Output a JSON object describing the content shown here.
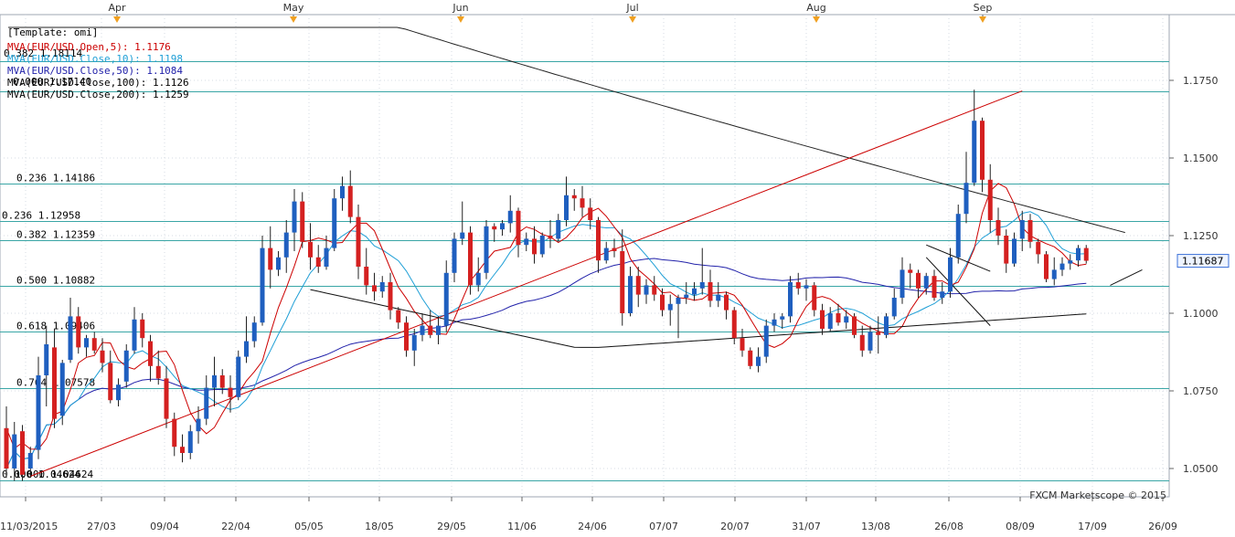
{
  "chart_data": {
    "type": "candlestick",
    "symbol": "EUR/USD",
    "timeframe": "daily",
    "template_label": "[Template: omi]",
    "legend": [
      {
        "text": "MVA(EUR/USD.Open,5): 1.1176",
        "color": "#cc0000"
      },
      {
        "text": "MVA(EUR/USD.Close,10): 1.1198",
        "color": "#1f9fd6"
      },
      {
        "text": "MVA(EUR/USD.Close,50): 1.1084",
        "color": "#2222aa"
      },
      {
        "text": "MVA(EUR/USD.Close,100): 1.1126",
        "color": "#000000"
      },
      {
        "text": "MVA(EUR/USD.Close,200): 1.1259",
        "color": "#000000"
      }
    ],
    "legend_overlap_texts": [
      "0.382 1.18114",
      "0.000 1.17140"
    ],
    "watermark": "FXCM Marketscope © 2015",
    "current_price": "1.11687",
    "y_ticks": [
      "1.0500",
      "1.0750",
      "1.1000",
      "1.1250",
      "1.1500",
      "1.1750"
    ],
    "y_tick_values": [
      1.05,
      1.075,
      1.1,
      1.125,
      1.15,
      1.175
    ],
    "y_range": [
      1.04,
      1.19
    ],
    "x_ticks": [
      "11/03/2015",
      "27/03",
      "09/04",
      "22/04",
      "05/05",
      "18/05",
      "29/05",
      "11/06",
      "24/06",
      "07/07",
      "20/07",
      "31/07",
      "13/08",
      "26/08",
      "08/09",
      "17/09",
      "26/09"
    ],
    "month_labels": [
      "Apr",
      "May",
      "Jun",
      "Jul",
      "Aug",
      "Sep"
    ],
    "fib_levels": [
      {
        "label": "0.382 1.18114",
        "value": 1.18114
      },
      {
        "label": "0.000 1.17140",
        "value": 1.1714
      },
      {
        "label": "0.236 1.14186",
        "value": 1.14186
      },
      {
        "label": "0.236 1.12958",
        "value": 1.12958
      },
      {
        "label": "0.382 1.12359",
        "value": 1.12359
      },
      {
        "label": "0.500 1.10882",
        "value": 1.10882
      },
      {
        "label": "0.618 1.09406",
        "value": 1.09406
      },
      {
        "label": "0.764 1.07578",
        "value": 1.07578
      },
      {
        "label": "0.000 1.04624",
        "value": 1.04624
      },
      {
        "label": "1.000 1.04624",
        "value": 1.04624
      }
    ],
    "candles": [
      {
        "o": 1.063,
        "h": 1.07,
        "l": 1.047,
        "c": 1.05
      },
      {
        "o": 1.05,
        "h": 1.065,
        "l": 1.046,
        "c": 1.061
      },
      {
        "o": 1.062,
        "h": 1.064,
        "l": 1.046,
        "c": 1.048
      },
      {
        "o": 1.05,
        "h": 1.057,
        "l": 1.047,
        "c": 1.055
      },
      {
        "o": 1.056,
        "h": 1.086,
        "l": 1.053,
        "c": 1.08
      },
      {
        "o": 1.08,
        "h": 1.096,
        "l": 1.07,
        "c": 1.09
      },
      {
        "o": 1.089,
        "h": 1.095,
        "l": 1.063,
        "c": 1.066
      },
      {
        "o": 1.067,
        "h": 1.085,
        "l": 1.064,
        "c": 1.084
      },
      {
        "o": 1.085,
        "h": 1.105,
        "l": 1.084,
        "c": 1.099
      },
      {
        "o": 1.099,
        "h": 1.102,
        "l": 1.087,
        "c": 1.089
      },
      {
        "o": 1.089,
        "h": 1.093,
        "l": 1.086,
        "c": 1.092
      },
      {
        "o": 1.092,
        "h": 1.094,
        "l": 1.087,
        "c": 1.088
      },
      {
        "o": 1.088,
        "h": 1.092,
        "l": 1.081,
        "c": 1.084
      },
      {
        "o": 1.084,
        "h": 1.088,
        "l": 1.071,
        "c": 1.072
      },
      {
        "o": 1.072,
        "h": 1.079,
        "l": 1.07,
        "c": 1.077
      },
      {
        "o": 1.078,
        "h": 1.09,
        "l": 1.076,
        "c": 1.088
      },
      {
        "o": 1.088,
        "h": 1.102,
        "l": 1.087,
        "c": 1.098
      },
      {
        "o": 1.098,
        "h": 1.1,
        "l": 1.089,
        "c": 1.092
      },
      {
        "o": 1.091,
        "h": 1.093,
        "l": 1.078,
        "c": 1.083
      },
      {
        "o": 1.083,
        "h": 1.088,
        "l": 1.077,
        "c": 1.079
      },
      {
        "o": 1.079,
        "h": 1.083,
        "l": 1.063,
        "c": 1.066
      },
      {
        "o": 1.066,
        "h": 1.068,
        "l": 1.054,
        "c": 1.057
      },
      {
        "o": 1.057,
        "h": 1.061,
        "l": 1.052,
        "c": 1.055
      },
      {
        "o": 1.055,
        "h": 1.064,
        "l": 1.053,
        "c": 1.062
      },
      {
        "o": 1.062,
        "h": 1.07,
        "l": 1.058,
        "c": 1.066
      },
      {
        "o": 1.066,
        "h": 1.08,
        "l": 1.064,
        "c": 1.076
      },
      {
        "o": 1.076,
        "h": 1.086,
        "l": 1.07,
        "c": 1.08
      },
      {
        "o": 1.08,
        "h": 1.082,
        "l": 1.074,
        "c": 1.076
      },
      {
        "o": 1.076,
        "h": 1.08,
        "l": 1.068,
        "c": 1.073
      },
      {
        "o": 1.073,
        "h": 1.088,
        "l": 1.072,
        "c": 1.086
      },
      {
        "o": 1.086,
        "h": 1.099,
        "l": 1.084,
        "c": 1.091
      },
      {
        "o": 1.091,
        "h": 1.099,
        "l": 1.089,
        "c": 1.097
      },
      {
        "o": 1.097,
        "h": 1.125,
        "l": 1.096,
        "c": 1.121
      },
      {
        "o": 1.121,
        "h": 1.128,
        "l": 1.108,
        "c": 1.114
      },
      {
        "o": 1.114,
        "h": 1.12,
        "l": 1.112,
        "c": 1.118
      },
      {
        "o": 1.118,
        "h": 1.13,
        "l": 1.113,
        "c": 1.126
      },
      {
        "o": 1.126,
        "h": 1.14,
        "l": 1.12,
        "c": 1.136
      },
      {
        "o": 1.136,
        "h": 1.139,
        "l": 1.121,
        "c": 1.123
      },
      {
        "o": 1.123,
        "h": 1.129,
        "l": 1.114,
        "c": 1.118
      },
      {
        "o": 1.118,
        "h": 1.122,
        "l": 1.113,
        "c": 1.115
      },
      {
        "o": 1.115,
        "h": 1.125,
        "l": 1.114,
        "c": 1.121
      },
      {
        "o": 1.121,
        "h": 1.14,
        "l": 1.12,
        "c": 1.137
      },
      {
        "o": 1.137,
        "h": 1.144,
        "l": 1.133,
        "c": 1.141
      },
      {
        "o": 1.141,
        "h": 1.146,
        "l": 1.129,
        "c": 1.131
      },
      {
        "o": 1.131,
        "h": 1.135,
        "l": 1.111,
        "c": 1.115
      },
      {
        "o": 1.115,
        "h": 1.121,
        "l": 1.106,
        "c": 1.109
      },
      {
        "o": 1.109,
        "h": 1.113,
        "l": 1.104,
        "c": 1.107
      },
      {
        "o": 1.107,
        "h": 1.112,
        "l": 1.105,
        "c": 1.11
      },
      {
        "o": 1.11,
        "h": 1.113,
        "l": 1.098,
        "c": 1.101
      },
      {
        "o": 1.101,
        "h": 1.102,
        "l": 1.095,
        "c": 1.097
      },
      {
        "o": 1.097,
        "h": 1.099,
        "l": 1.086,
        "c": 1.088
      },
      {
        "o": 1.088,
        "h": 1.095,
        "l": 1.083,
        "c": 1.093
      },
      {
        "o": 1.093,
        "h": 1.1,
        "l": 1.091,
        "c": 1.096
      },
      {
        "o": 1.096,
        "h": 1.101,
        "l": 1.092,
        "c": 1.093
      },
      {
        "o": 1.093,
        "h": 1.099,
        "l": 1.09,
        "c": 1.096
      },
      {
        "o": 1.096,
        "h": 1.117,
        "l": 1.094,
        "c": 1.113
      },
      {
        "o": 1.113,
        "h": 1.126,
        "l": 1.11,
        "c": 1.124
      },
      {
        "o": 1.124,
        "h": 1.136,
        "l": 1.122,
        "c": 1.126
      },
      {
        "o": 1.126,
        "h": 1.128,
        "l": 1.106,
        "c": 1.109
      },
      {
        "o": 1.109,
        "h": 1.118,
        "l": 1.107,
        "c": 1.113
      },
      {
        "o": 1.113,
        "h": 1.13,
        "l": 1.111,
        "c": 1.128
      },
      {
        "o": 1.128,
        "h": 1.129,
        "l": 1.123,
        "c": 1.127
      },
      {
        "o": 1.127,
        "h": 1.13,
        "l": 1.125,
        "c": 1.129
      },
      {
        "o": 1.129,
        "h": 1.138,
        "l": 1.126,
        "c": 1.133
      },
      {
        "o": 1.133,
        "h": 1.134,
        "l": 1.118,
        "c": 1.122
      },
      {
        "o": 1.122,
        "h": 1.126,
        "l": 1.12,
        "c": 1.124
      },
      {
        "o": 1.124,
        "h": 1.128,
        "l": 1.116,
        "c": 1.119
      },
      {
        "o": 1.119,
        "h": 1.126,
        "l": 1.118,
        "c": 1.125
      },
      {
        "o": 1.125,
        "h": 1.13,
        "l": 1.121,
        "c": 1.124
      },
      {
        "o": 1.124,
        "h": 1.132,
        "l": 1.123,
        "c": 1.13
      },
      {
        "o": 1.13,
        "h": 1.144,
        "l": 1.128,
        "c": 1.138
      },
      {
        "o": 1.138,
        "h": 1.14,
        "l": 1.133,
        "c": 1.137
      },
      {
        "o": 1.137,
        "h": 1.141,
        "l": 1.131,
        "c": 1.134
      },
      {
        "o": 1.134,
        "h": 1.137,
        "l": 1.127,
        "c": 1.13
      },
      {
        "o": 1.13,
        "h": 1.131,
        "l": 1.113,
        "c": 1.117
      },
      {
        "o": 1.117,
        "h": 1.123,
        "l": 1.116,
        "c": 1.121
      },
      {
        "o": 1.121,
        "h": 1.124,
        "l": 1.118,
        "c": 1.12
      },
      {
        "o": 1.12,
        "h": 1.127,
        "l": 1.096,
        "c": 1.1
      },
      {
        "o": 1.1,
        "h": 1.115,
        "l": 1.099,
        "c": 1.112
      },
      {
        "o": 1.112,
        "h": 1.115,
        "l": 1.102,
        "c": 1.106
      },
      {
        "o": 1.106,
        "h": 1.111,
        "l": 1.103,
        "c": 1.109
      },
      {
        "o": 1.109,
        "h": 1.112,
        "l": 1.104,
        "c": 1.106
      },
      {
        "o": 1.106,
        "h": 1.108,
        "l": 1.099,
        "c": 1.101
      },
      {
        "o": 1.101,
        "h": 1.106,
        "l": 1.096,
        "c": 1.103
      },
      {
        "o": 1.103,
        "h": 1.106,
        "l": 1.092,
        "c": 1.105
      },
      {
        "o": 1.105,
        "h": 1.11,
        "l": 1.103,
        "c": 1.106
      },
      {
        "o": 1.106,
        "h": 1.11,
        "l": 1.104,
        "c": 1.108
      },
      {
        "o": 1.108,
        "h": 1.121,
        "l": 1.106,
        "c": 1.11
      },
      {
        "o": 1.11,
        "h": 1.114,
        "l": 1.102,
        "c": 1.104
      },
      {
        "o": 1.104,
        "h": 1.11,
        "l": 1.102,
        "c": 1.106
      },
      {
        "o": 1.106,
        "h": 1.107,
        "l": 1.098,
        "c": 1.101
      },
      {
        "o": 1.101,
        "h": 1.102,
        "l": 1.09,
        "c": 1.092
      },
      {
        "o": 1.092,
        "h": 1.095,
        "l": 1.086,
        "c": 1.088
      },
      {
        "o": 1.088,
        "h": 1.089,
        "l": 1.082,
        "c": 1.083
      },
      {
        "o": 1.083,
        "h": 1.089,
        "l": 1.081,
        "c": 1.086
      },
      {
        "o": 1.086,
        "h": 1.098,
        "l": 1.084,
        "c": 1.096
      },
      {
        "o": 1.096,
        "h": 1.1,
        "l": 1.094,
        "c": 1.098
      },
      {
        "o": 1.098,
        "h": 1.1,
        "l": 1.095,
        "c": 1.099
      },
      {
        "o": 1.099,
        "h": 1.112,
        "l": 1.097,
        "c": 1.11
      },
      {
        "o": 1.11,
        "h": 1.113,
        "l": 1.106,
        "c": 1.108
      },
      {
        "o": 1.108,
        "h": 1.111,
        "l": 1.104,
        "c": 1.109
      },
      {
        "o": 1.109,
        "h": 1.11,
        "l": 1.099,
        "c": 1.101
      },
      {
        "o": 1.101,
        "h": 1.103,
        "l": 1.093,
        "c": 1.095
      },
      {
        "o": 1.095,
        "h": 1.102,
        "l": 1.094,
        "c": 1.1
      },
      {
        "o": 1.1,
        "h": 1.103,
        "l": 1.096,
        "c": 1.097
      },
      {
        "o": 1.097,
        "h": 1.101,
        "l": 1.095,
        "c": 1.099
      },
      {
        "o": 1.099,
        "h": 1.1,
        "l": 1.092,
        "c": 1.093
      },
      {
        "o": 1.093,
        "h": 1.096,
        "l": 1.086,
        "c": 1.088
      },
      {
        "o": 1.088,
        "h": 1.096,
        "l": 1.087,
        "c": 1.094
      },
      {
        "o": 1.094,
        "h": 1.099,
        "l": 1.087,
        "c": 1.093
      },
      {
        "o": 1.093,
        "h": 1.1,
        "l": 1.092,
        "c": 1.099
      },
      {
        "o": 1.099,
        "h": 1.108,
        "l": 1.098,
        "c": 1.105
      },
      {
        "o": 1.105,
        "h": 1.118,
        "l": 1.103,
        "c": 1.114
      },
      {
        "o": 1.114,
        "h": 1.116,
        "l": 1.108,
        "c": 1.113
      },
      {
        "o": 1.113,
        "h": 1.114,
        "l": 1.105,
        "c": 1.108
      },
      {
        "o": 1.108,
        "h": 1.113,
        "l": 1.106,
        "c": 1.112
      },
      {
        "o": 1.112,
        "h": 1.114,
        "l": 1.104,
        "c": 1.105
      },
      {
        "o": 1.105,
        "h": 1.11,
        "l": 1.103,
        "c": 1.107
      },
      {
        "o": 1.107,
        "h": 1.121,
        "l": 1.105,
        "c": 1.118
      },
      {
        "o": 1.118,
        "h": 1.135,
        "l": 1.116,
        "c": 1.132
      },
      {
        "o": 1.132,
        "h": 1.152,
        "l": 1.129,
        "c": 1.142
      },
      {
        "o": 1.142,
        "h": 1.172,
        "l": 1.141,
        "c": 1.162
      },
      {
        "o": 1.162,
        "h": 1.163,
        "l": 1.139,
        "c": 1.143
      },
      {
        "o": 1.143,
        "h": 1.148,
        "l": 1.126,
        "c": 1.13
      },
      {
        "o": 1.13,
        "h": 1.134,
        "l": 1.122,
        "c": 1.125
      },
      {
        "o": 1.125,
        "h": 1.127,
        "l": 1.113,
        "c": 1.116
      },
      {
        "o": 1.116,
        "h": 1.126,
        "l": 1.115,
        "c": 1.124
      },
      {
        "o": 1.124,
        "h": 1.133,
        "l": 1.12,
        "c": 1.13
      },
      {
        "o": 1.13,
        "h": 1.132,
        "l": 1.121,
        "c": 1.123
      },
      {
        "o": 1.123,
        "h": 1.124,
        "l": 1.116,
        "c": 1.119
      },
      {
        "o": 1.119,
        "h": 1.12,
        "l": 1.11,
        "c": 1.111
      },
      {
        "o": 1.111,
        "h": 1.118,
        "l": 1.109,
        "c": 1.114
      },
      {
        "o": 1.114,
        "h": 1.118,
        "l": 1.112,
        "c": 1.116
      },
      {
        "o": 1.116,
        "h": 1.119,
        "l": 1.114,
        "c": 1.117
      },
      {
        "o": 1.117,
        "h": 1.122,
        "l": 1.115,
        "c": 1.121
      },
      {
        "o": 1.121,
        "h": 1.122,
        "l": 1.116,
        "c": 1.1169
      }
    ],
    "trend_line": {
      "from": {
        "index": 3,
        "value": 1.0475
      },
      "to": {
        "index": 127,
        "value": 1.1716
      }
    },
    "pattern_lines": [
      {
        "from": {
          "index": 115,
          "value": 1.122
        },
        "to": {
          "index": 123,
          "value": 1.1135
        }
      },
      {
        "from": {
          "index": 115,
          "value": 1.118
        },
        "to": {
          "index": 123,
          "value": 1.096
        }
      },
      {
        "from": {
          "index": 138,
          "value": 1.109
        },
        "to": {
          "index": 142,
          "value": 1.114
        }
      }
    ],
    "colors": {
      "up": "#1f5fbf",
      "down": "#d42020",
      "wick": "#222222",
      "fib": "#3aa6a6",
      "trend": "#cc0000",
      "border": "#9fa7b3",
      "arrow": "#f0a020"
    }
  }
}
